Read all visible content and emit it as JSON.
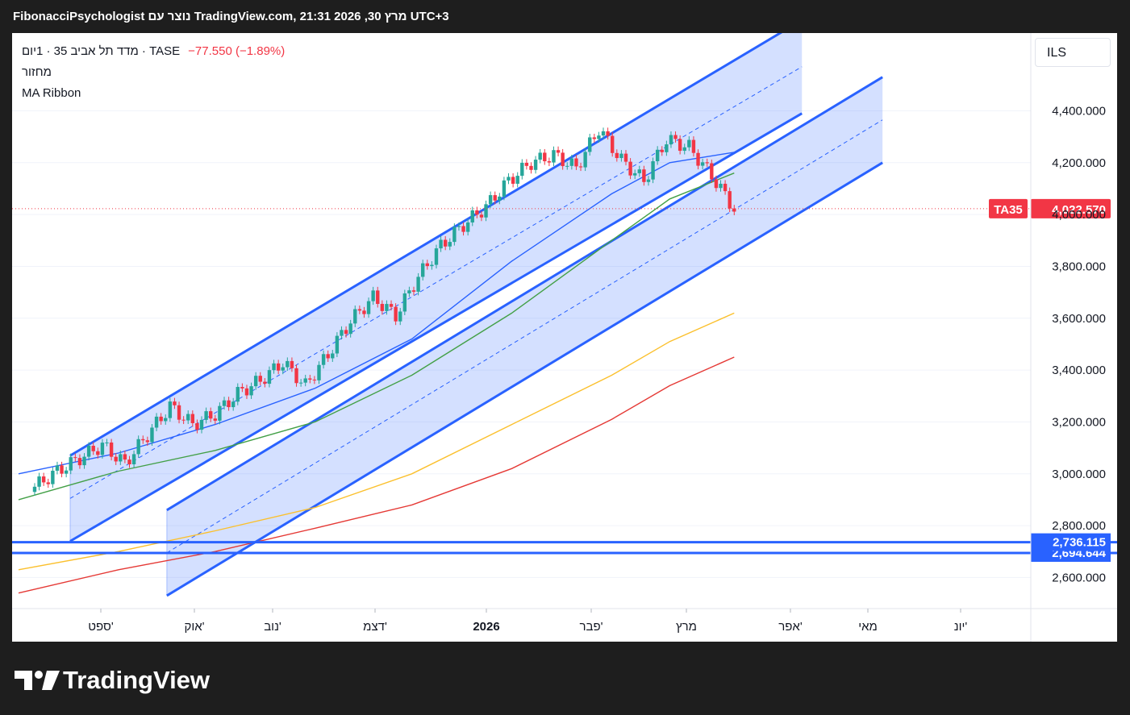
{
  "header": {
    "title": "FibonacciPsychologist נוצר עם TradingView.com, מרץ 30, 2026 21:31 UTC+3"
  },
  "legend": {
    "symbol_line": "מדד תל אביב 35 · 1יום · TASE",
    "change": "−77.550 (−1.89%)",
    "indicator_1": "מחזור",
    "indicator_2": "MA Ribbon"
  },
  "currency_label": "ILS",
  "last_price_tag": {
    "symbol": "TA35",
    "value": "4,022.570"
  },
  "level_tags": [
    "2,736.115",
    "2,694.644"
  ],
  "footer": {
    "brand": "TradingView"
  },
  "colors": {
    "up": "#26a69a",
    "down": "#f23645",
    "channel": "#2962ff",
    "ma_fast": "#2962ff",
    "ma_mid": "#43a047",
    "ma_slow": "#fbc02d",
    "ma_long": "#e53935"
  },
  "chart_data": {
    "type": "line",
    "title": "מדד תל אביב 35 · 1יום · TASE",
    "xlabel": "",
    "ylabel": "",
    "x_ticks": [
      "ספט'",
      "אוק'",
      "נוב'",
      "דצמ'",
      "2026",
      "פבר'",
      "מרץ",
      "אפר'",
      "מאי",
      "יונ'"
    ],
    "y_ticks": [
      2600,
      2800,
      3000,
      3200,
      3400,
      3600,
      3800,
      4000,
      4200,
      4400
    ],
    "y_tick_labels": [
      "2,600.000",
      "2,800.000",
      "3,000.000",
      "3,200.000",
      "3,400.000",
      "3,600.000",
      "3,800.000",
      "4,000.000",
      "4,200.000",
      "4,400.000"
    ],
    "ylim": [
      2480,
      4700
    ],
    "last_price": 4022.57,
    "horizontal_levels": [
      2736.115,
      2694.644
    ],
    "series": [
      {
        "name": "TA35 close",
        "x": [
          "2025-08-25",
          "2025-09-01",
          "2025-09-08",
          "2025-09-15",
          "2025-09-22",
          "2025-09-29",
          "2025-10-06",
          "2025-10-13",
          "2025-10-20",
          "2025-10-27",
          "2025-11-03",
          "2025-11-10",
          "2025-11-17",
          "2025-11-24",
          "2025-12-01",
          "2025-12-08",
          "2025-12-15",
          "2025-12-22",
          "2025-12-29",
          "2026-01-05",
          "2026-01-12",
          "2026-01-19",
          "2026-01-26",
          "2026-02-02",
          "2026-02-09",
          "2026-02-16",
          "2026-02-23",
          "2026-03-02",
          "2026-03-09",
          "2026-03-16",
          "2026-03-23",
          "2026-03-30"
        ],
        "values": [
          2950,
          3010,
          3060,
          3110,
          3040,
          3150,
          3260,
          3190,
          3230,
          3310,
          3360,
          3430,
          3340,
          3460,
          3590,
          3680,
          3610,
          3760,
          3880,
          3960,
          4030,
          4130,
          4200,
          4230,
          4180,
          4330,
          4210,
          4130,
          4290,
          4260,
          4150,
          4022
        ]
      },
      {
        "name": "MA fast",
        "x": [
          "2025-08-20",
          "2025-09-20",
          "2025-10-20",
          "2025-11-20",
          "2025-12-20",
          "2026-01-20",
          "2026-02-20",
          "2026-03-10",
          "2026-03-30"
        ],
        "values": [
          3000,
          3080,
          3190,
          3330,
          3520,
          3820,
          4080,
          4200,
          4240
        ]
      },
      {
        "name": "MA mid",
        "x": [
          "2025-08-20",
          "2025-09-20",
          "2025-10-20",
          "2025-11-20",
          "2025-12-20",
          "2026-01-20",
          "2026-02-20",
          "2026-03-10",
          "2026-03-30"
        ],
        "values": [
          2900,
          3010,
          3090,
          3200,
          3380,
          3620,
          3900,
          4060,
          4160
        ]
      },
      {
        "name": "MA slow",
        "x": [
          "2025-08-20",
          "2025-09-20",
          "2025-10-20",
          "2025-11-20",
          "2025-12-20",
          "2026-01-20",
          "2026-02-20",
          "2026-03-10",
          "2026-03-30"
        ],
        "values": [
          2630,
          2700,
          2780,
          2870,
          3000,
          3190,
          3380,
          3510,
          3620
        ]
      },
      {
        "name": "MA long",
        "x": [
          "2025-08-20",
          "2025-09-20",
          "2025-10-20",
          "2025-11-20",
          "2025-12-20",
          "2026-01-20",
          "2026-02-20",
          "2026-03-10",
          "2026-03-30"
        ],
        "values": [
          2540,
          2630,
          2700,
          2790,
          2880,
          3020,
          3210,
          3340,
          3450
        ]
      }
    ],
    "channels": [
      {
        "x": [
          "2025-09-05",
          "2026-04-20"
        ],
        "upper": [
          3070,
          4750
        ],
        "lower": [
          2740,
          4390
        ]
      },
      {
        "x": [
          "2025-10-05",
          "2026-05-15"
        ],
        "upper": [
          2860,
          4530
        ],
        "lower": [
          2530,
          4200
        ]
      }
    ]
  }
}
